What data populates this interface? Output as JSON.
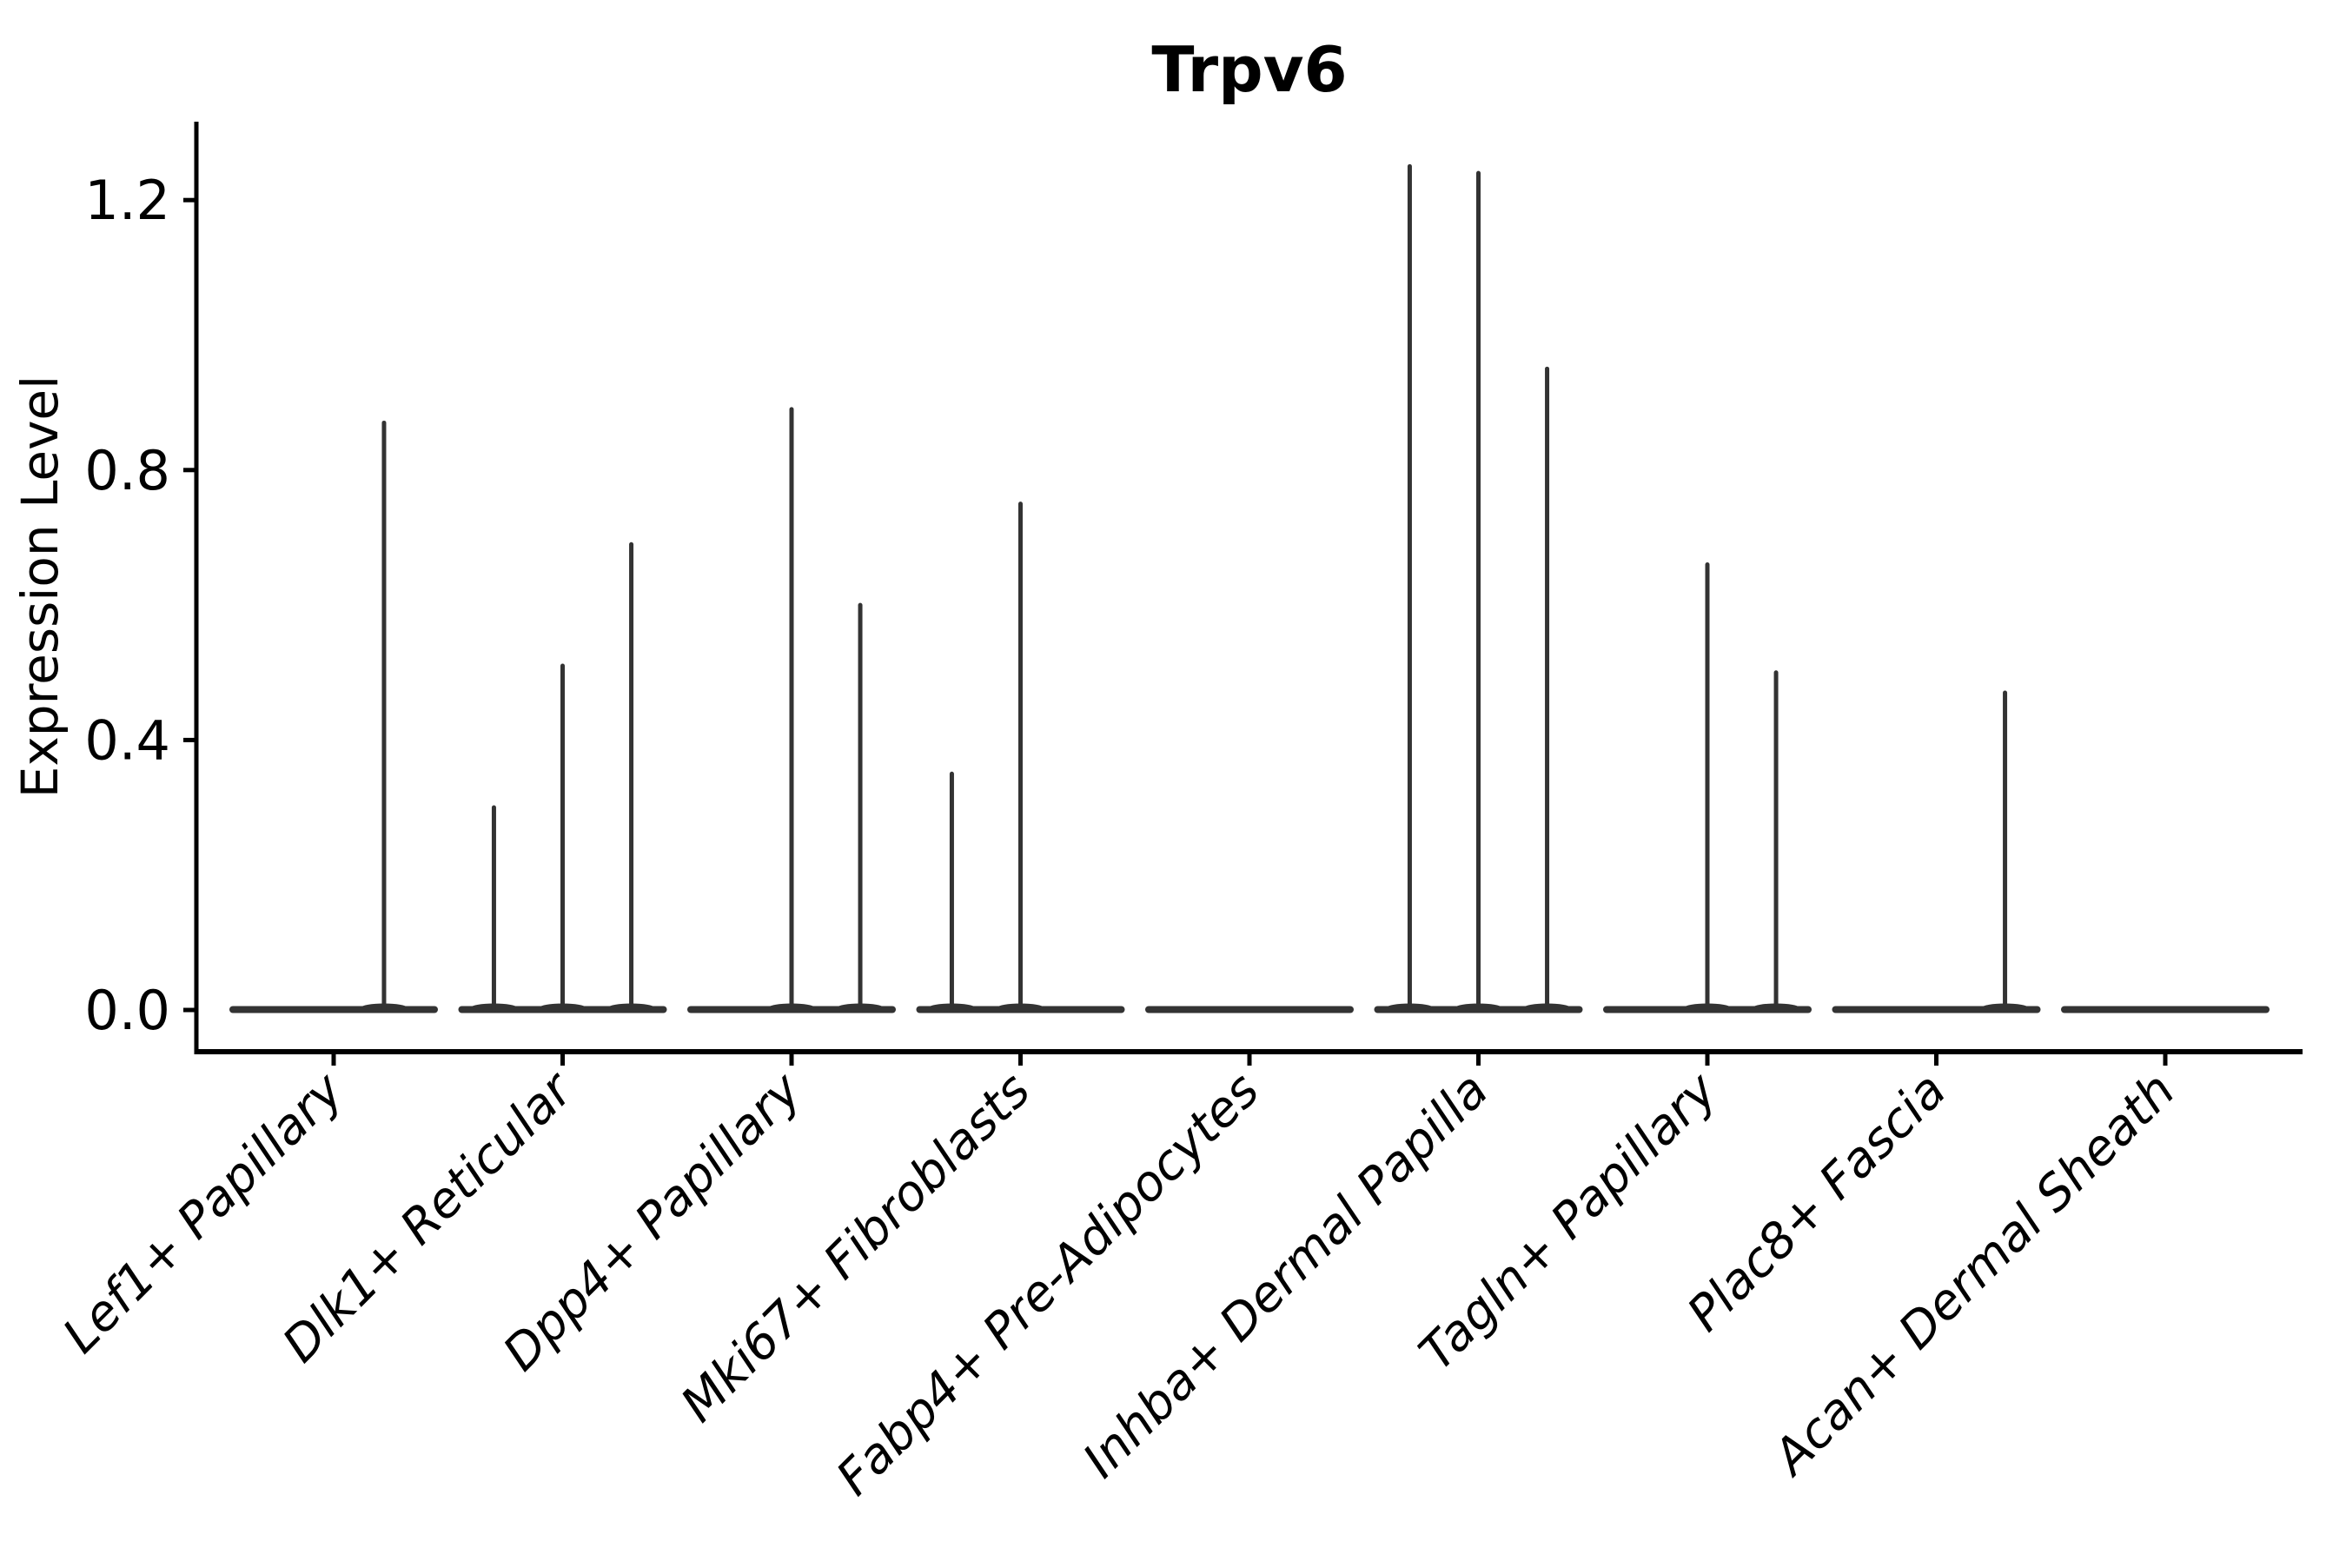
{
  "title": "Trpv6",
  "ylabel": "Expression Level",
  "colors": {
    "violin": "#333333",
    "axis": "#000000",
    "text": "#000000",
    "background": "#ffffff"
  },
  "chart_data": {
    "type": "violin",
    "title": "Trpv6",
    "xlabel": "",
    "ylabel": "Expression Level",
    "ylim": [
      -0.06,
      1.32
    ],
    "yticks": [
      0.0,
      0.4,
      0.8,
      1.2
    ],
    "grid": false,
    "legend": "none",
    "x_tick_rotation_deg": 45,
    "categories": [
      "Lef1+ Papillary",
      "Dlk1+ Reticular",
      "Dpp4+ Papillary",
      "Mki67+ Fibroblasts",
      "Fabp4+ Pre-Adipocytes",
      "Inhba+ Dermal Papilla",
      "Tagln+ Papillary",
      "Plac8+ Fascia",
      "Acan+ Dermal Sheath"
    ],
    "series": [
      {
        "name": "Lef1+ Papillary",
        "baseline_value": 0.0,
        "spikes": [
          {
            "offset_frac": 0.22,
            "value": 0.87
          }
        ]
      },
      {
        "name": "Dlk1+ Reticular",
        "baseline_value": 0.0,
        "spikes": [
          {
            "offset_frac": -0.3,
            "value": 0.3
          },
          {
            "offset_frac": 0.0,
            "value": 0.51
          },
          {
            "offset_frac": 0.3,
            "value": 0.69
          }
        ]
      },
      {
        "name": "Dpp4+ Papillary",
        "baseline_value": 0.0,
        "spikes": [
          {
            "offset_frac": 0.0,
            "value": 0.89
          },
          {
            "offset_frac": 0.3,
            "value": 0.6
          }
        ]
      },
      {
        "name": "Mki67+ Fibroblasts",
        "baseline_value": 0.0,
        "spikes": [
          {
            "offset_frac": -0.3,
            "value": 0.35
          },
          {
            "offset_frac": 0.0,
            "value": 0.75
          }
        ]
      },
      {
        "name": "Fabp4+ Pre-Adipocytes",
        "baseline_value": 0.0,
        "spikes": []
      },
      {
        "name": "Inhba+ Dermal Papilla",
        "baseline_value": 0.0,
        "spikes": [
          {
            "offset_frac": -0.3,
            "value": 1.25
          },
          {
            "offset_frac": 0.0,
            "value": 1.24
          },
          {
            "offset_frac": 0.3,
            "value": 0.95
          }
        ]
      },
      {
        "name": "Tagln+ Papillary",
        "baseline_value": 0.0,
        "spikes": [
          {
            "offset_frac": 0.0,
            "value": 0.66
          },
          {
            "offset_frac": 0.3,
            "value": 0.5
          }
        ]
      },
      {
        "name": "Plac8+ Fascia",
        "baseline_value": 0.0,
        "spikes": [
          {
            "offset_frac": 0.3,
            "value": 0.47
          }
        ]
      },
      {
        "name": "Acan+ Dermal Sheath",
        "baseline_value": 0.0,
        "spikes": []
      }
    ]
  }
}
